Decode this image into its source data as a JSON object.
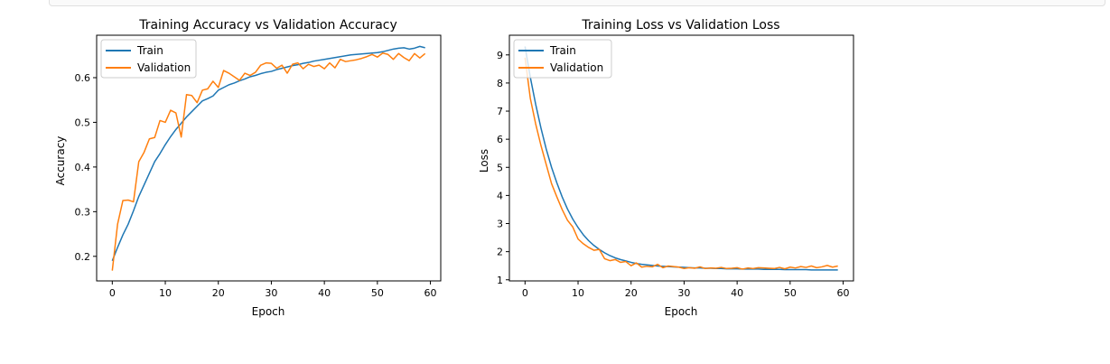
{
  "colors": {
    "train": "#1f77b4",
    "validation": "#ff7f0e"
  },
  "chart_data": [
    {
      "type": "line",
      "title": "Training Accuracy vs Validation Accuracy",
      "xlabel": "Epoch",
      "ylabel": "Accuracy",
      "xlim": [
        -2.95,
        61.95
      ],
      "ylim": [
        0.145,
        0.695
      ],
      "xticks": [
        0,
        10,
        20,
        30,
        40,
        50,
        60
      ],
      "yticks": [
        0.2,
        0.3,
        0.4,
        0.5,
        0.6
      ],
      "ytick_labels": [
        "0.2",
        "0.3",
        "0.4",
        "0.5",
        "0.6"
      ],
      "legend": "top-left",
      "grid": false,
      "x": [
        0,
        1,
        2,
        3,
        4,
        5,
        6,
        7,
        8,
        9,
        10,
        11,
        12,
        13,
        14,
        15,
        16,
        17,
        18,
        19,
        20,
        21,
        22,
        23,
        24,
        25,
        26,
        27,
        28,
        29,
        30,
        31,
        32,
        33,
        34,
        35,
        36,
        37,
        38,
        39,
        40,
        41,
        42,
        43,
        44,
        45,
        46,
        47,
        48,
        49,
        50,
        51,
        52,
        53,
        54,
        55,
        56,
        57,
        58,
        59
      ],
      "series": [
        {
          "name": "Train",
          "values": [
            0.19,
            0.22,
            0.248,
            0.272,
            0.302,
            0.334,
            0.36,
            0.386,
            0.412,
            0.43,
            0.45,
            0.468,
            0.484,
            0.498,
            0.512,
            0.524,
            0.536,
            0.548,
            0.553,
            0.559,
            0.572,
            0.578,
            0.584,
            0.588,
            0.593,
            0.597,
            0.602,
            0.605,
            0.609,
            0.612,
            0.614,
            0.618,
            0.621,
            0.624,
            0.627,
            0.629,
            0.632,
            0.634,
            0.637,
            0.639,
            0.641,
            0.643,
            0.645,
            0.647,
            0.649,
            0.651,
            0.652,
            0.653,
            0.654,
            0.655,
            0.656,
            0.658,
            0.661,
            0.664,
            0.666,
            0.667,
            0.664,
            0.666,
            0.67,
            0.667
          ]
        },
        {
          "name": "Validation",
          "values": [
            0.168,
            0.272,
            0.325,
            0.326,
            0.322,
            0.412,
            0.433,
            0.463,
            0.466,
            0.504,
            0.5,
            0.527,
            0.521,
            0.467,
            0.562,
            0.56,
            0.544,
            0.572,
            0.575,
            0.592,
            0.578,
            0.616,
            0.61,
            0.602,
            0.594,
            0.61,
            0.605,
            0.612,
            0.628,
            0.633,
            0.632,
            0.621,
            0.628,
            0.61,
            0.63,
            0.633,
            0.62,
            0.63,
            0.625,
            0.628,
            0.62,
            0.633,
            0.622,
            0.641,
            0.636,
            0.638,
            0.64,
            0.643,
            0.647,
            0.652,
            0.646,
            0.655,
            0.652,
            0.641,
            0.654,
            0.645,
            0.638,
            0.654,
            0.644,
            0.654
          ]
        }
      ]
    },
    {
      "type": "line",
      "title": "Training Loss vs Validation Loss",
      "xlabel": "Epoch",
      "ylabel": "Loss",
      "xlim": [
        -2.95,
        61.95
      ],
      "ylim": [
        0.96,
        9.7
      ],
      "xticks": [
        0,
        10,
        20,
        30,
        40,
        50,
        60
      ],
      "yticks": [
        1,
        2,
        3,
        4,
        5,
        6,
        7,
        8,
        9
      ],
      "ytick_labels": [
        "1",
        "2",
        "3",
        "4",
        "5",
        "6",
        "7",
        "8",
        "9"
      ],
      "legend": "top-left",
      "grid": false,
      "x": [
        0,
        1,
        2,
        3,
        4,
        5,
        6,
        7,
        8,
        9,
        10,
        11,
        12,
        13,
        14,
        15,
        16,
        17,
        18,
        19,
        20,
        21,
        22,
        23,
        24,
        25,
        26,
        27,
        28,
        29,
        30,
        31,
        32,
        33,
        34,
        35,
        36,
        37,
        38,
        39,
        40,
        41,
        42,
        43,
        44,
        45,
        46,
        47,
        48,
        49,
        50,
        51,
        52,
        53,
        54,
        55,
        56,
        57,
        58,
        59
      ],
      "series": [
        {
          "name": "Train",
          "values": [
            9.3,
            8.2,
            7.25,
            6.4,
            5.65,
            5.0,
            4.45,
            3.95,
            3.52,
            3.16,
            2.86,
            2.6,
            2.39,
            2.22,
            2.08,
            1.96,
            1.86,
            1.78,
            1.72,
            1.67,
            1.62,
            1.58,
            1.55,
            1.53,
            1.51,
            1.49,
            1.48,
            1.47,
            1.46,
            1.45,
            1.44,
            1.43,
            1.42,
            1.42,
            1.41,
            1.41,
            1.4,
            1.4,
            1.39,
            1.39,
            1.39,
            1.38,
            1.38,
            1.38,
            1.38,
            1.37,
            1.37,
            1.37,
            1.37,
            1.36,
            1.36,
            1.36,
            1.36,
            1.36,
            1.35,
            1.35,
            1.35,
            1.35,
            1.35,
            1.35
          ]
        },
        {
          "name": "Validation",
          "values": [
            8.9,
            7.45,
            6.55,
            5.78,
            5.1,
            4.42,
            3.95,
            3.5,
            3.12,
            2.88,
            2.45,
            2.28,
            2.15,
            2.05,
            2.08,
            1.75,
            1.68,
            1.72,
            1.62,
            1.65,
            1.5,
            1.6,
            1.45,
            1.48,
            1.46,
            1.55,
            1.43,
            1.49,
            1.47,
            1.45,
            1.4,
            1.43,
            1.41,
            1.46,
            1.4,
            1.42,
            1.41,
            1.44,
            1.4,
            1.41,
            1.43,
            1.38,
            1.42,
            1.4,
            1.43,
            1.42,
            1.41,
            1.4,
            1.44,
            1.39,
            1.45,
            1.42,
            1.47,
            1.44,
            1.49,
            1.43,
            1.46,
            1.51,
            1.45,
            1.49
          ]
        }
      ]
    }
  ]
}
